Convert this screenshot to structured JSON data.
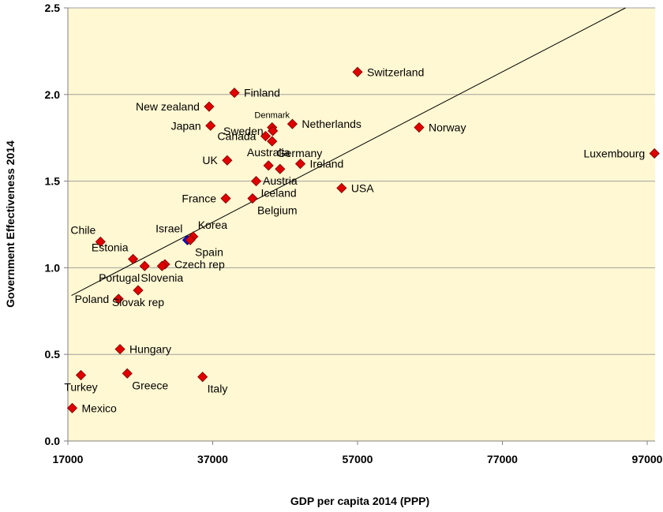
{
  "chart_data": {
    "type": "scatter",
    "title": "",
    "xlabel": "GDP per capita 2014 (PPP)",
    "ylabel": "Government Effectiveness 2014",
    "xlim": [
      17000,
      99000
    ],
    "ylim": [
      0,
      2.5
    ],
    "x_ticks": [
      17000,
      37000,
      57000,
      77000,
      97000
    ],
    "x_tick_labels": [
      "17000",
      "37000",
      "57000",
      "77000",
      "97000"
    ],
    "y_ticks": [
      0,
      0.5,
      1.0,
      1.5,
      2.0,
      2.5
    ],
    "y_tick_labels": [
      "0.0",
      "0.5",
      "1.0",
      "1.5",
      "2.0",
      "2.5"
    ],
    "grid": "horizontal",
    "colors": {
      "plot_background": "#FFF8D2",
      "marker": "#E00000",
      "marker_edge": "#7A0000",
      "highlight_marker": "#0A14CC",
      "gridline": "#A0A0A0",
      "trendline": "#000000"
    },
    "trendline": {
      "x": [
        17500,
        94000
      ],
      "y": [
        0.84,
        2.5
      ]
    },
    "points": [
      {
        "label": "Switzerland",
        "x": 57000,
        "y": 2.13,
        "anchor": "right"
      },
      {
        "label": "Finland",
        "x": 40000,
        "y": 2.01,
        "anchor": "right"
      },
      {
        "label": "New zealand",
        "x": 36500,
        "y": 1.93,
        "anchor": "left"
      },
      {
        "label": "Denmark",
        "x": 45200,
        "y": 1.81,
        "anchor": "above",
        "small": true
      },
      {
        "label": "Netherlands",
        "x": 48000,
        "y": 1.83,
        "anchor": "right"
      },
      {
        "label": "Japan",
        "x": 36700,
        "y": 1.82,
        "anchor": "left"
      },
      {
        "label": "Sweden",
        "x": 45300,
        "y": 1.79,
        "anchor": "left"
      },
      {
        "label": "Norway",
        "x": 65500,
        "y": 1.81,
        "anchor": "right"
      },
      {
        "label": "Canada",
        "x": 44300,
        "y": 1.76,
        "anchor": "left"
      },
      {
        "label": "Germany",
        "x": 45200,
        "y": 1.73,
        "anchor": "below-right"
      },
      {
        "label": "Luxembourg",
        "x": 98000,
        "y": 1.66,
        "anchor": "left"
      },
      {
        "label": "UK",
        "x": 39000,
        "y": 1.62,
        "anchor": "left"
      },
      {
        "label": "Australia",
        "x": 44700,
        "y": 1.59,
        "anchor": "above"
      },
      {
        "label": "Ireland",
        "x": 49100,
        "y": 1.6,
        "anchor": "right"
      },
      {
        "label": "Austria",
        "x": 46300,
        "y": 1.57,
        "anchor": "below"
      },
      {
        "label": "Iceland",
        "x": 43000,
        "y": 1.5,
        "anchor": "below-right"
      },
      {
        "label": "USA",
        "x": 54800,
        "y": 1.46,
        "anchor": "right"
      },
      {
        "label": "France",
        "x": 38800,
        "y": 1.4,
        "anchor": "left"
      },
      {
        "label": "Belgium",
        "x": 42500,
        "y": 1.4,
        "anchor": "below-right"
      },
      {
        "label": "Chile",
        "x": 21500,
        "y": 1.15,
        "anchor": "above-left"
      },
      {
        "label": "Israel",
        "x": 33500,
        "y": 1.16,
        "anchor": "above-left",
        "highlight": true
      },
      {
        "label": "Korea",
        "x": 34300,
        "y": 1.18,
        "anchor": "above-right"
      },
      {
        "label": "Spain",
        "x": 33900,
        "y": 1.16,
        "anchor": "below-right"
      },
      {
        "label": "Estonia",
        "x": 26000,
        "y": 1.05,
        "anchor": "above-left"
      },
      {
        "label": "Czech rep",
        "x": 30400,
        "y": 1.02,
        "anchor": "right"
      },
      {
        "label": "Portugal",
        "x": 27600,
        "y": 1.01,
        "anchor": "below-left"
      },
      {
        "label": "Slovenia",
        "x": 30000,
        "y": 1.01,
        "anchor": "below"
      },
      {
        "label": "Poland",
        "x": 24000,
        "y": 0.82,
        "anchor": "left"
      },
      {
        "label": "Slovak rep",
        "x": 26700,
        "y": 0.87,
        "anchor": "below"
      },
      {
        "label": "Hungary",
        "x": 24200,
        "y": 0.53,
        "anchor": "right"
      },
      {
        "label": "Turkey",
        "x": 18800,
        "y": 0.38,
        "anchor": "below"
      },
      {
        "label": "Greece",
        "x": 25200,
        "y": 0.39,
        "anchor": "below-right"
      },
      {
        "label": "Italy",
        "x": 35600,
        "y": 0.37,
        "anchor": "below-right"
      },
      {
        "label": "Mexico",
        "x": 17600,
        "y": 0.19,
        "anchor": "right"
      }
    ]
  }
}
